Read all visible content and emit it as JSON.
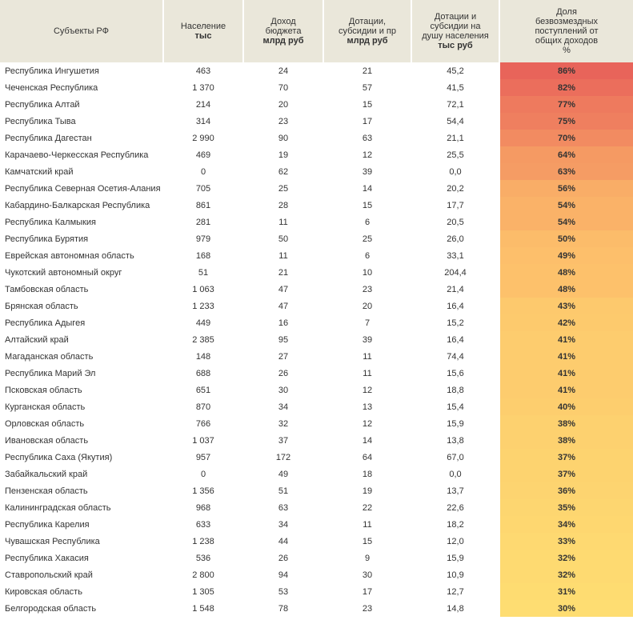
{
  "table": {
    "columns": [
      {
        "lines": [
          "Субъекты РФ"
        ],
        "bold_lines": []
      },
      {
        "lines": [
          "Население"
        ],
        "bold_lines": [
          "тыс"
        ]
      },
      {
        "lines": [
          "Доход",
          "бюджета"
        ],
        "bold_lines": [
          "млрд руб"
        ]
      },
      {
        "lines": [
          "Дотации,",
          "субсидии и пр"
        ],
        "bold_lines": [
          "млрд руб"
        ]
      },
      {
        "lines": [
          "Дотации и",
          "субсидии на",
          "душу населения"
        ],
        "bold_lines": [
          "тыс руб"
        ]
      },
      {
        "lines": [
          "Доля",
          "безвозмездных",
          "поступлений от",
          "общих доходов",
          "%"
        ],
        "bold_lines": []
      }
    ],
    "rows": [
      {
        "name": "Республика Ингушетия",
        "pop": "463",
        "income": "24",
        "subs": "21",
        "per_cap": "45,2",
        "pct": "86%",
        "bg": "#e8645a"
      },
      {
        "name": "Чеченская Республика",
        "pop": "1 370",
        "income": "70",
        "subs": "57",
        "per_cap": "41,5",
        "pct": "82%",
        "bg": "#eb6e5c"
      },
      {
        "name": "Республика Алтай",
        "pop": "214",
        "income": "20",
        "subs": "15",
        "per_cap": "72,1",
        "pct": "77%",
        "bg": "#ee7a5e"
      },
      {
        "name": "Республика Тыва",
        "pop": "314",
        "income": "23",
        "subs": "17",
        "per_cap": "54,4",
        "pct": "75%",
        "bg": "#ef7f5f"
      },
      {
        "name": "Республика Дагестан",
        "pop": "2 990",
        "income": "90",
        "subs": "63",
        "per_cap": "21,1",
        "pct": "70%",
        "bg": "#f28b61"
      },
      {
        "name": "Карачаево-Черкесская Республика",
        "pop": "469",
        "income": "19",
        "subs": "12",
        "per_cap": "25,5",
        "pct": "64%",
        "bg": "#f59a63"
      },
      {
        "name": "Камчатский край",
        "pop": "0",
        "income": "62",
        "subs": "39",
        "per_cap": "0,0",
        "pct": "63%",
        "bg": "#f59c64"
      },
      {
        "name": "Республика Северная Осетия-Алания",
        "pop": "705",
        "income": "25",
        "subs": "14",
        "per_cap": "20,2",
        "pct": "56%",
        "bg": "#f9ad67"
      },
      {
        "name": "Кабардино-Балкарская Республика",
        "pop": "861",
        "income": "28",
        "subs": "15",
        "per_cap": "17,7",
        "pct": "54%",
        "bg": "#fab268"
      },
      {
        "name": "Республика Калмыкия",
        "pop": "281",
        "income": "11",
        "subs": "6",
        "per_cap": "20,5",
        "pct": "54%",
        "bg": "#fab268"
      },
      {
        "name": "Республика Бурятия",
        "pop": "979",
        "income": "50",
        "subs": "25",
        "per_cap": "26,0",
        "pct": "50%",
        "bg": "#fcbc6a"
      },
      {
        "name": "Еврейская автономная область",
        "pop": "168",
        "income": "11",
        "subs": "6",
        "per_cap": "33,1",
        "pct": "49%",
        "bg": "#fdbf6b"
      },
      {
        "name": "Чукотский автономный округ",
        "pop": "51",
        "income": "21",
        "subs": "10",
        "per_cap": "204,4",
        "pct": "48%",
        "bg": "#fdc16b"
      },
      {
        "name": "Тамбовская область",
        "pop": "1 063",
        "income": "47",
        "subs": "23",
        "per_cap": "21,4",
        "pct": "48%",
        "bg": "#fdc16b"
      },
      {
        "name": "Брянская область",
        "pop": "1 233",
        "income": "47",
        "subs": "20",
        "per_cap": "16,4",
        "pct": "43%",
        "bg": "#fdc96d"
      },
      {
        "name": "Республика Адыгея",
        "pop": "449",
        "income": "16",
        "subs": "7",
        "per_cap": "15,2",
        "pct": "42%",
        "bg": "#fdca6d"
      },
      {
        "name": "Алтайский край",
        "pop": "2 385",
        "income": "95",
        "subs": "39",
        "per_cap": "16,4",
        "pct": "41%",
        "bg": "#fdcc6e"
      },
      {
        "name": "Магаданская область",
        "pop": "148",
        "income": "27",
        "subs": "11",
        "per_cap": "74,4",
        "pct": "41%",
        "bg": "#fdcc6e"
      },
      {
        "name": "Республика Марий Эл",
        "pop": "688",
        "income": "26",
        "subs": "11",
        "per_cap": "15,6",
        "pct": "41%",
        "bg": "#fdcc6e"
      },
      {
        "name": "Псковская область",
        "pop": "651",
        "income": "30",
        "subs": "12",
        "per_cap": "18,8",
        "pct": "41%",
        "bg": "#fdcc6e"
      },
      {
        "name": "Курганская область",
        "pop": "870",
        "income": "34",
        "subs": "13",
        "per_cap": "15,4",
        "pct": "40%",
        "bg": "#fdce6e"
      },
      {
        "name": "Орловская область",
        "pop": "766",
        "income": "32",
        "subs": "12",
        "per_cap": "15,9",
        "pct": "38%",
        "bg": "#fdd16f"
      },
      {
        "name": "Ивановская область",
        "pop": "1 037",
        "income": "37",
        "subs": "14",
        "per_cap": "13,8",
        "pct": "38%",
        "bg": "#fdd16f"
      },
      {
        "name": "Республика Саха (Якутия)",
        "pop": "957",
        "income": "172",
        "subs": "64",
        "per_cap": "67,0",
        "pct": "37%",
        "bg": "#fdd36f"
      },
      {
        "name": "Забайкальский край",
        "pop": "0",
        "income": "49",
        "subs": "18",
        "per_cap": "0,0",
        "pct": "37%",
        "bg": "#fdd36f"
      },
      {
        "name": "Пензенская область",
        "pop": "1 356",
        "income": "51",
        "subs": "19",
        "per_cap": "13,7",
        "pct": "36%",
        "bg": "#fdd470"
      },
      {
        "name": "Калининградская область",
        "pop": "968",
        "income": "63",
        "subs": "22",
        "per_cap": "22,6",
        "pct": "35%",
        "bg": "#fdd670"
      },
      {
        "name": "Республика Карелия",
        "pop": "633",
        "income": "34",
        "subs": "11",
        "per_cap": "18,2",
        "pct": "34%",
        "bg": "#fed770"
      },
      {
        "name": "Чувашская Республика",
        "pop": "1 238",
        "income": "44",
        "subs": "15",
        "per_cap": "12,0",
        "pct": "33%",
        "bg": "#fed971"
      },
      {
        "name": "Республика Хакасия",
        "pop": "536",
        "income": "26",
        "subs": "9",
        "per_cap": "15,9",
        "pct": "32%",
        "bg": "#feda71"
      },
      {
        "name": "Ставропольский край",
        "pop": "2 800",
        "income": "94",
        "subs": "30",
        "per_cap": "10,9",
        "pct": "32%",
        "bg": "#feda71"
      },
      {
        "name": "Кировская область",
        "pop": "1 305",
        "income": "53",
        "subs": "17",
        "per_cap": "12,7",
        "pct": "31%",
        "bg": "#fedc71"
      },
      {
        "name": "Белгородская область",
        "pop": "1 548",
        "income": "78",
        "subs": "23",
        "per_cap": "14,8",
        "pct": "30%",
        "bg": "#fedd72"
      }
    ]
  }
}
